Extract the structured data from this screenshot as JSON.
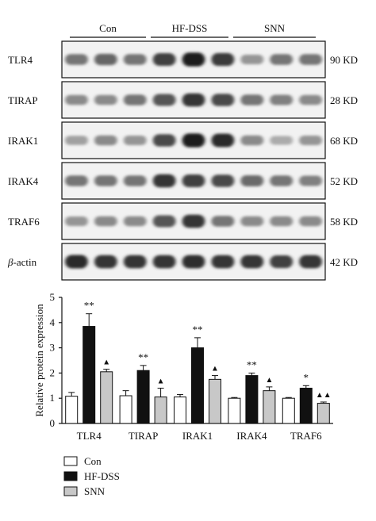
{
  "blot": {
    "groups": [
      "Con",
      "HF-DSS",
      "SNN"
    ],
    "lanes_per_group": 3,
    "proteins": [
      {
        "name": "TLR4",
        "size": "90 KD",
        "intensities": [
          0.55,
          0.62,
          0.55,
          0.8,
          0.95,
          0.82,
          0.4,
          0.55,
          0.55
        ]
      },
      {
        "name": "TIRAP",
        "size": "28 KD",
        "intensities": [
          0.45,
          0.45,
          0.55,
          0.7,
          0.85,
          0.75,
          0.55,
          0.5,
          0.45
        ]
      },
      {
        "name": "IRAK1",
        "size": "68 KD",
        "intensities": [
          0.35,
          0.45,
          0.4,
          0.75,
          0.95,
          0.9,
          0.45,
          0.3,
          0.4
        ]
      },
      {
        "name": "IRAK4",
        "size": "52 KD",
        "intensities": [
          0.55,
          0.55,
          0.55,
          0.85,
          0.8,
          0.75,
          0.6,
          0.55,
          0.5
        ]
      },
      {
        "name": "TRAF6",
        "size": "58 KD",
        "intensities": [
          0.4,
          0.45,
          0.45,
          0.7,
          0.85,
          0.55,
          0.45,
          0.45,
          0.45
        ]
      },
      {
        "name": "β-actin",
        "size": "42 KD",
        "intensities": [
          0.9,
          0.85,
          0.85,
          0.85,
          0.88,
          0.85,
          0.85,
          0.8,
          0.85
        ]
      }
    ]
  },
  "chart_data": {
    "type": "bar",
    "categories": [
      "TLR4",
      "TIRAP",
      "IRAK1",
      "IRAK4",
      "TRAF6"
    ],
    "series": [
      {
        "name": "Con",
        "color": "#ffffff",
        "values": [
          1.08,
          1.1,
          1.05,
          1.0,
          1.0
        ],
        "errors": [
          0.15,
          0.2,
          0.1,
          0.03,
          0.03
        ],
        "marks": [
          "",
          "",
          "",
          "",
          ""
        ]
      },
      {
        "name": "HF-DSS",
        "color": "#111111",
        "values": [
          3.85,
          2.1,
          3.0,
          1.9,
          1.4
        ],
        "errors": [
          0.5,
          0.2,
          0.4,
          0.1,
          0.1
        ],
        "marks": [
          "**",
          "**",
          "**",
          "**",
          "*"
        ]
      },
      {
        "name": "SNN",
        "color": "#c8c8c8",
        "values": [
          2.05,
          1.05,
          1.75,
          1.3,
          0.8
        ],
        "errors": [
          0.1,
          0.35,
          0.15,
          0.15,
          0.05
        ],
        "marks": [
          "▲",
          "▲",
          "▲",
          "▲",
          "▲▲"
        ]
      }
    ],
    "ylabel": "Relative protein expression",
    "xlabel": "",
    "ylim": [
      0,
      5
    ],
    "yticks": [
      0,
      1,
      2,
      3,
      4,
      5
    ],
    "legend_position": "bottom-left"
  }
}
